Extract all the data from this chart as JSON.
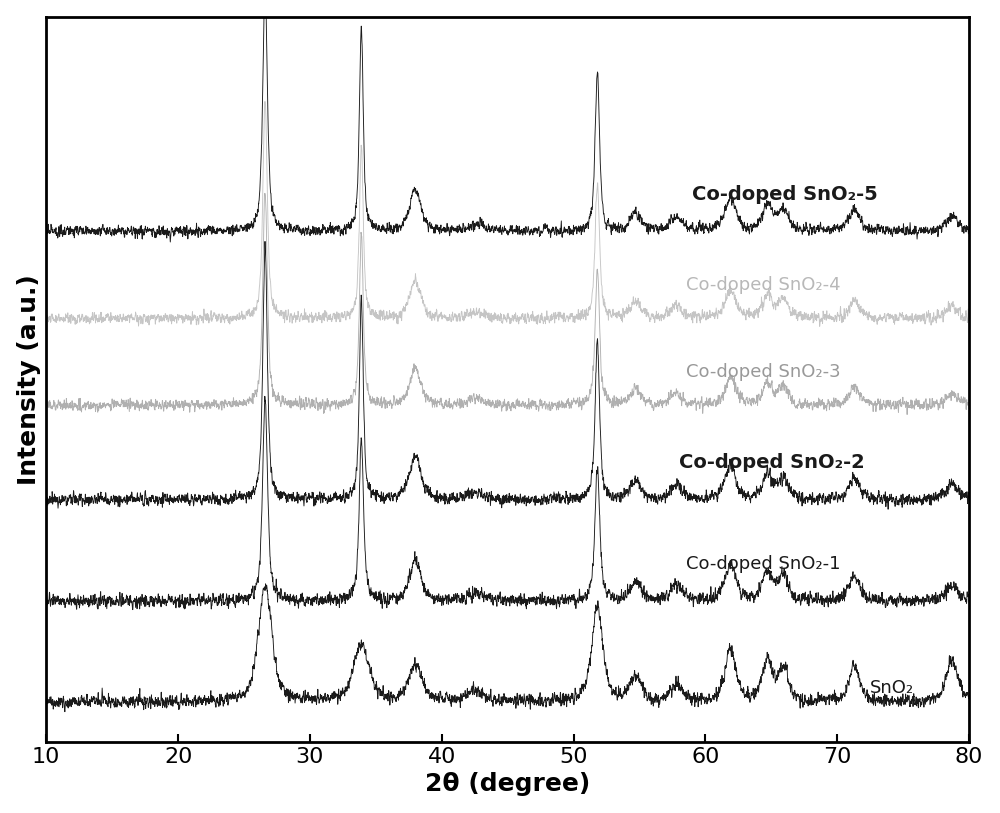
{
  "xlabel": "2θ (degree)",
  "ylabel": "Intensity (a.u.)",
  "xlim": [
    10,
    80
  ],
  "xticks": [
    10,
    20,
    30,
    40,
    50,
    60,
    70,
    80
  ],
  "xticklabels": [
    "10",
    "20",
    "30",
    "40",
    "50",
    "60",
    "70",
    "80"
  ],
  "background_color": "#ffffff",
  "line_color_dark": "#1a1a1a",
  "line_color_gray3": "#b0b0b0",
  "line_color_gray4": "#c5c5c5",
  "labels": [
    "SnO₂",
    "Co-doped SnO₂-1",
    "Co-doped SnO₂-2",
    "Co-doped SnO₂-3",
    "Co-doped SnO₂-4",
    "Co-doped SnO₂-5"
  ],
  "label_colors": [
    "#1a1a1a",
    "#1a1a1a",
    "#1a1a1a",
    "#999999",
    "#b8b8b8",
    "#1a1a1a"
  ],
  "label_fontsizes": [
    13,
    13,
    14,
    13,
    13,
    14
  ],
  "label_fontweights": [
    "normal",
    "normal",
    "bold",
    "normal",
    "normal",
    "bold"
  ],
  "offsets": [
    0.0,
    1.4,
    2.8,
    4.1,
    5.3,
    6.5
  ],
  "figsize": [
    10.0,
    8.13
  ],
  "dpi": 100,
  "label_fontsize": 18,
  "tick_fontsize": 16
}
